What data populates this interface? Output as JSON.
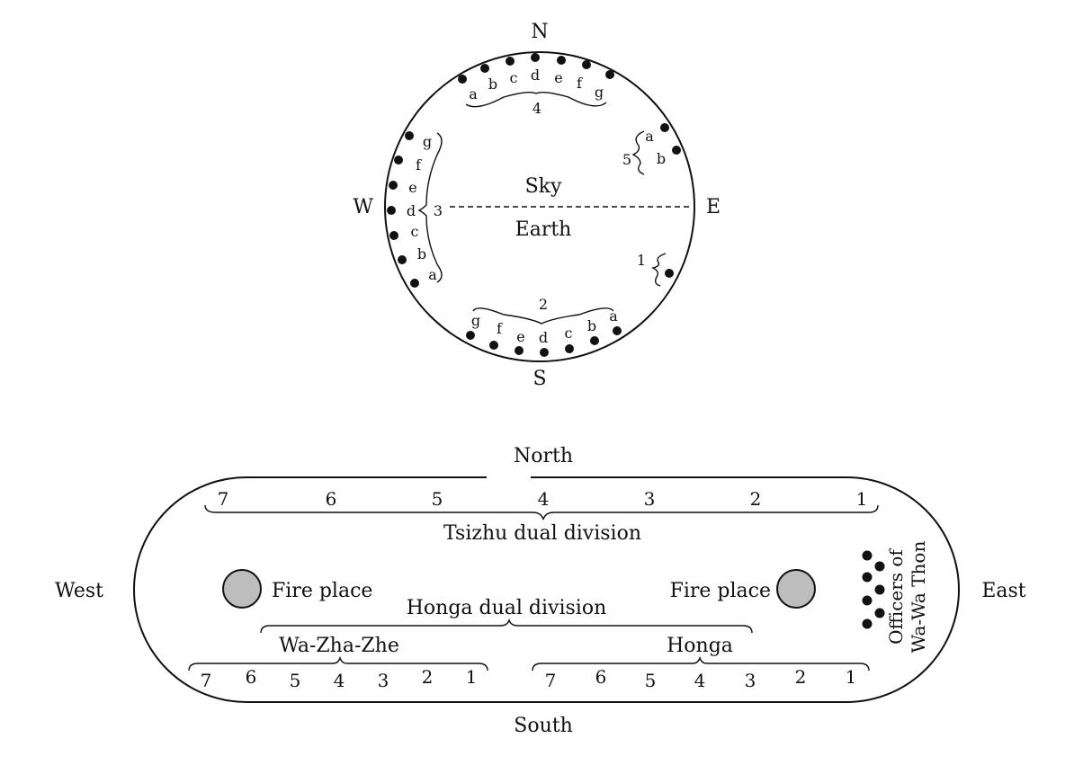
{
  "circle": {
    "north": "N",
    "south": "S",
    "east": "E",
    "west": "W",
    "sky": "Sky",
    "earth": "Earth",
    "group1": {
      "number": "1",
      "letters": []
    },
    "group2": {
      "number": "2",
      "letters": [
        "g",
        "f",
        "e",
        "d",
        "c",
        "b",
        "a"
      ]
    },
    "group3": {
      "number": "3",
      "letters": [
        "g",
        "f",
        "e",
        "d",
        "c",
        "b",
        "a"
      ]
    },
    "group4": {
      "number": "4",
      "letters": [
        "a",
        "b",
        "c",
        "d",
        "e",
        "f",
        "g"
      ]
    },
    "group5": {
      "number": "5",
      "letters": [
        "a",
        "b"
      ]
    }
  },
  "lodge": {
    "north": "North",
    "south": "South",
    "east": "East",
    "west": "West",
    "tsizhu_label": "Tsizhu dual division",
    "tsizhu_numbers": [
      "7",
      "6",
      "5",
      "4",
      "3",
      "2",
      "1"
    ],
    "fire_place_west": "Fire place",
    "fire_place_east": "Fire place",
    "honga_dual_label": "Honga dual division",
    "wazhazhe_label": "Wa-Zha-Zhe",
    "honga_label": "Honga",
    "wazhazhe_numbers": [
      "7",
      "6",
      "5",
      "4",
      "3",
      "2",
      "1"
    ],
    "honga_numbers": [
      "7",
      "6",
      "5",
      "4",
      "3",
      "2",
      "1"
    ],
    "officers_line1": "Officers of",
    "officers_line2": "Wa-Wa Thon"
  }
}
